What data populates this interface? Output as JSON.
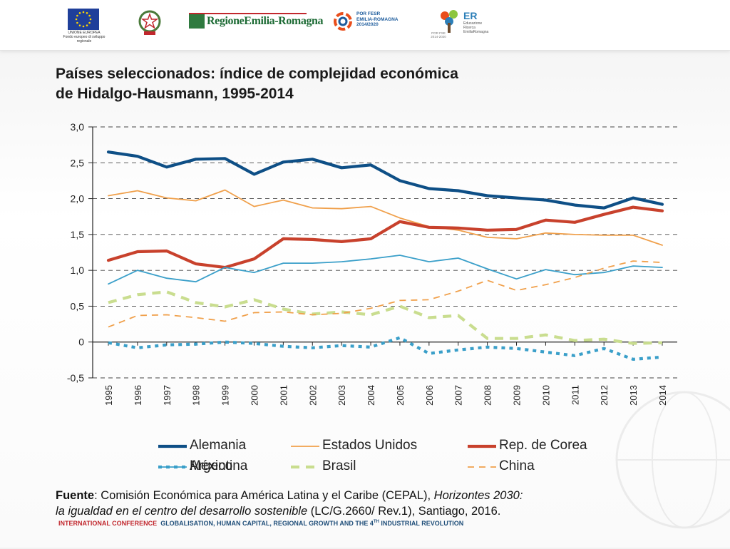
{
  "header": {
    "logos": [
      {
        "name": "Unione Europea",
        "lines": [
          "UNIONE EUROPEA",
          "Fondo europeo di sviluppo regionale"
        ]
      },
      {
        "name": "Repubblica Italiana"
      },
      {
        "name": "Regione Emilia-Romagna",
        "text": "RegioneEmilia-Romagna"
      },
      {
        "name": "POR FESR Emilia-Romagna",
        "lines": [
          "POR FESR",
          "EMILIA-ROMAGNA",
          "2014/2020"
        ]
      },
      {
        "name": "ER Educazione Ricerca Emilia-Romagna",
        "title": "ER",
        "lines": [
          "Educazione",
          "Ricerca",
          "EmiliaRomagna"
        ],
        "small": [
          "POR FSE",
          "2014-2020"
        ]
      }
    ]
  },
  "title": {
    "line1": "Países seleccionados: índice de complejidad económica",
    "line2": "de Hidalgo-Hausmann, 1995-2014"
  },
  "chart_data": {
    "type": "line",
    "title": "Países seleccionados: índice de complejidad económica de Hidalgo-Hausmann, 1995-2014",
    "xlabel": "",
    "ylabel": "",
    "x": [
      "1995",
      "1996",
      "1997",
      "1998",
      "1999",
      "2000",
      "2001",
      "2002",
      "2003",
      "2004",
      "2005",
      "2006",
      "2007",
      "2008",
      "2009",
      "2010",
      "2011",
      "2012",
      "2013",
      "2014"
    ],
    "ylim": [
      -0.5,
      3.0
    ],
    "yticks": [
      3.0,
      2.5,
      2.0,
      1.5,
      1.0,
      0.5,
      0,
      -0.5
    ],
    "ytick_labels": [
      "3,0",
      "2,5",
      "2,0",
      "1,5",
      "1,0",
      "0,5",
      "0",
      "-0,5"
    ],
    "grid": true,
    "legend_position": "bottom",
    "series": [
      {
        "name": "Alemania",
        "color": "#0e4f86",
        "style": "solid",
        "weight": "thick",
        "values": [
          2.65,
          2.59,
          2.44,
          2.55,
          2.56,
          2.34,
          2.51,
          2.55,
          2.43,
          2.47,
          2.25,
          2.14,
          2.11,
          2.04,
          2.01,
          1.98,
          1.91,
          1.87,
          2.01,
          1.92
        ]
      },
      {
        "name": "Estados Unidos",
        "color": "#f0a04b",
        "style": "solid",
        "weight": "thin",
        "values": [
          2.04,
          2.11,
          2.01,
          1.97,
          2.12,
          1.89,
          1.98,
          1.87,
          1.86,
          1.89,
          1.73,
          1.61,
          1.56,
          1.46,
          1.44,
          1.52,
          1.5,
          1.49,
          1.49,
          1.35
        ]
      },
      {
        "name": "Rep. de Corea",
        "color": "#c8412c",
        "style": "solid",
        "weight": "thick",
        "values": [
          1.14,
          1.26,
          1.27,
          1.09,
          1.04,
          1.16,
          1.44,
          1.43,
          1.4,
          1.44,
          1.68,
          1.6,
          1.59,
          1.56,
          1.57,
          1.7,
          1.67,
          1.78,
          1.88,
          1.83
        ]
      },
      {
        "name": "México",
        "color": "#3a9fc9",
        "style": "solid",
        "weight": "thin",
        "values": [
          0.81,
          1.0,
          0.89,
          0.84,
          1.04,
          0.97,
          1.1,
          1.1,
          1.12,
          1.16,
          1.21,
          1.12,
          1.17,
          1.02,
          0.88,
          1.01,
          0.94,
          0.97,
          1.06,
          1.04
        ]
      },
      {
        "name": "Brasil",
        "color": "#c9dd8f",
        "style": "dashed",
        "weight": "thick",
        "values": [
          0.55,
          0.66,
          0.7,
          0.55,
          0.49,
          0.59,
          0.46,
          0.39,
          0.42,
          0.38,
          0.5,
          0.34,
          0.37,
          0.05,
          0.05,
          0.1,
          0.02,
          0.04,
          -0.02,
          -0.01
        ]
      },
      {
        "name": "China",
        "color": "#f0a04b",
        "style": "dashed",
        "weight": "thin",
        "values": [
          0.21,
          0.37,
          0.38,
          0.34,
          0.29,
          0.41,
          0.42,
          0.38,
          0.4,
          0.47,
          0.58,
          0.59,
          0.71,
          0.86,
          0.72,
          0.8,
          0.9,
          1.03,
          1.13,
          1.11
        ]
      },
      {
        "name": "Argentina",
        "color": "#3a9fc9",
        "style": "dotted",
        "weight": "thick",
        "values": [
          -0.01,
          -0.08,
          -0.04,
          -0.03,
          0.0,
          -0.02,
          -0.06,
          -0.08,
          -0.05,
          -0.07,
          0.06,
          -0.16,
          -0.11,
          -0.07,
          -0.09,
          -0.14,
          -0.19,
          -0.09,
          -0.24,
          -0.21
        ]
      }
    ]
  },
  "source": {
    "label": "Fuente",
    "text1": ": Comisión Económica para América Latina y el Caribe (CEPAL), ",
    "italic1": "Horizontes 2030:",
    "italic2": "la igualdad en el centro del desarrollo sostenible",
    "text2": " (LC/G.2660/ Rev.1), Santiago, 2016."
  },
  "footer": {
    "part1": "INTERNATIONAL CONFERENCE",
    "part2": "GLOBALISATION, HUMAN CAPITAL, REGIONAL GROWTH AND THE 4",
    "sup": "TH",
    "part3": " INDUSTRIAL REVOLUTION"
  }
}
